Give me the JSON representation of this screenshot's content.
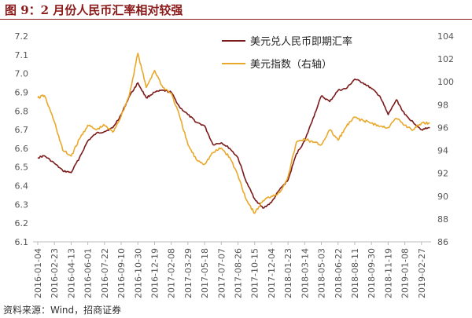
{
  "title": "图 9：2 月份人民币汇率相对较强",
  "source": "资料来源：Wind，招商证券",
  "chart_data": {
    "type": "line",
    "title": "图 9：2 月份人民币汇率相对较强",
    "xlabel": "",
    "ylabel_left": "",
    "ylabel_right": "",
    "y_left_lim": [
      6.1,
      7.2
    ],
    "y_left_ticks": [
      "6.1",
      "6.2",
      "6.3",
      "6.4",
      "6.5",
      "6.6",
      "6.7",
      "6.8",
      "6.9",
      "7.0",
      "7.1",
      "7.2"
    ],
    "y_right_lim": [
      86,
      104
    ],
    "y_right_ticks": [
      "86",
      "88",
      "90",
      "92",
      "94",
      "96",
      "98",
      "100",
      "102",
      "104"
    ],
    "x_ticks": [
      "2016-01-04",
      "2016-02-23",
      "2016-04-13",
      "2016-06-01",
      "2016-07-22",
      "2016-09-10",
      "2016-10-30",
      "2016-12-19",
      "2017-02-08",
      "2017-03-29",
      "2017-05-18",
      "2017-07-07",
      "2017-08-26",
      "2017-10-15",
      "2017-12-04",
      "2018-01-23",
      "2018-03-14",
      "2018-05-03",
      "2018-06-22",
      "2018-08-11",
      "2018-09-30",
      "2018-11-19",
      "2019-01-08",
      "2019-02-27"
    ],
    "grid": false,
    "legend_position": "top-right",
    "series": [
      {
        "name": "美元兑人民币即期汇率",
        "axis": "left",
        "color": "#7B1A1A",
        "x": [
          0,
          0.4,
          1,
          1.5,
          2,
          2.5,
          3,
          3.5,
          4,
          4.5,
          5,
          5.5,
          6,
          6.5,
          7,
          7.5,
          8,
          8.5,
          9,
          9.5,
          10,
          10.5,
          11,
          11.5,
          12,
          12.5,
          13,
          13.5,
          14,
          14.5,
          15,
          15.5,
          16,
          16.5,
          17,
          17.5,
          18,
          18.5,
          19,
          19.5,
          20,
          20.5,
          21,
          21.5,
          22,
          22.5,
          23,
          23.5
        ],
        "values": [
          6.55,
          6.56,
          6.52,
          6.48,
          6.47,
          6.55,
          6.64,
          6.68,
          6.69,
          6.71,
          6.78,
          6.88,
          6.95,
          6.87,
          6.9,
          6.91,
          6.9,
          6.82,
          6.78,
          6.74,
          6.72,
          6.62,
          6.63,
          6.6,
          6.55,
          6.42,
          6.33,
          6.28,
          6.31,
          6.38,
          6.43,
          6.57,
          6.64,
          6.76,
          6.88,
          6.85,
          6.91,
          6.92,
          6.97,
          6.95,
          6.92,
          6.88,
          6.78,
          6.86,
          6.78,
          6.74,
          6.7,
          6.71
        ]
      },
      {
        "name": "美元指数（右轴）",
        "axis": "right",
        "color": "#E9A82A",
        "x": [
          0,
          0.4,
          1,
          1.5,
          2,
          2.5,
          3,
          3.5,
          4,
          4.5,
          5,
          5.5,
          6,
          6.5,
          7,
          7.5,
          8,
          8.5,
          9,
          9.5,
          10,
          10.5,
          11,
          11.5,
          12,
          12.5,
          13,
          13.5,
          14,
          14.5,
          15,
          15.5,
          16,
          16.5,
          17,
          17.5,
          18,
          18.5,
          19,
          19.5,
          20,
          20.5,
          21,
          21.5,
          22,
          22.5,
          23,
          23.5
        ],
        "values": [
          98.6,
          98.8,
          96.5,
          94.0,
          93.5,
          95.0,
          96.2,
          95.8,
          96.2,
          95.6,
          97.0,
          98.9,
          102.5,
          99.5,
          101.0,
          99.5,
          99.0,
          97.0,
          94.5,
          93.2,
          92.8,
          93.8,
          94.2,
          93.4,
          91.8,
          89.7,
          88.5,
          89.6,
          90.0,
          90.3,
          91.7,
          94.7,
          95.0,
          94.7,
          94.5,
          95.8,
          94.9,
          96.1,
          96.9,
          96.6,
          96.4,
          96.1,
          96.0,
          96.8,
          96.2,
          95.8,
          96.4,
          96.4
        ]
      }
    ]
  }
}
